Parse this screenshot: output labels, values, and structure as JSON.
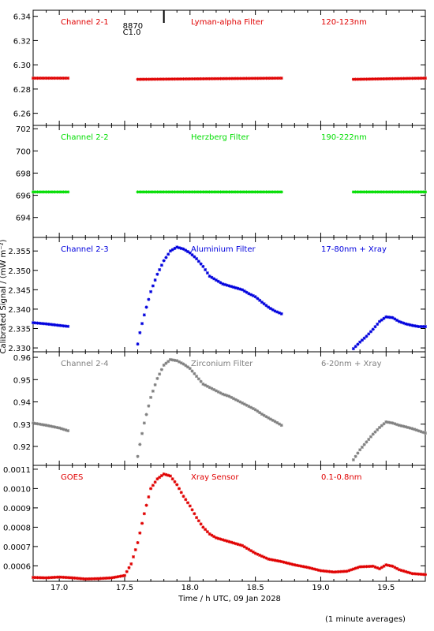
{
  "figure": {
    "ylabel": "Calibrated Signal / (mW m⁻²)",
    "xlabel": "Time / h UTC, 09 Jan 2028",
    "footnote": "(1 minute averages)",
    "flare_marker": {
      "time": 17.8,
      "top_label": "8870",
      "bottom_label": "C1.0"
    }
  },
  "chart_data": [
    {
      "type": "scatter",
      "panel": "Channel 2-1",
      "labels": [
        "Channel 2-1",
        "Lyman-alpha Filter",
        "120-123nm"
      ],
      "color": "#e00000",
      "ylim": [
        6.25,
        6.345
      ],
      "yticks": [
        6.26,
        6.28,
        6.3,
        6.32,
        6.34
      ],
      "ytick_labels": [
        "6.26",
        "6.28",
        "6.30",
        "6.32",
        "6.34"
      ],
      "segments": [
        {
          "x": [
            16.8,
            17.08
          ],
          "y": [
            6.289,
            6.289
          ]
        },
        {
          "x": [
            17.6,
            18.7
          ],
          "y": [
            6.288,
            6.289
          ]
        },
        {
          "x": [
            19.25,
            19.8
          ],
          "y": [
            6.288,
            6.289
          ]
        }
      ]
    },
    {
      "type": "scatter",
      "panel": "Channel 2-2",
      "labels": [
        "Channel 2-2",
        "Herzberg Filter",
        "190-222nm"
      ],
      "color": "#00dd00",
      "ylim": [
        692.2,
        702.3
      ],
      "yticks": [
        694,
        696,
        698,
        700,
        702
      ],
      "ytick_labels": [
        "694",
        "696",
        "698",
        "700",
        "702"
      ],
      "segments": [
        {
          "x": [
            16.8,
            17.08
          ],
          "y": [
            696.3,
            696.3
          ]
        },
        {
          "x": [
            17.6,
            18.7
          ],
          "y": [
            696.3,
            696.3
          ]
        },
        {
          "x": [
            19.25,
            19.8
          ],
          "y": [
            696.3,
            696.3
          ]
        }
      ]
    },
    {
      "type": "scatter",
      "panel": "Channel 2-3",
      "labels": [
        "Channel 2-3",
        "Aluminium Filter",
        "17-80nm + Xray"
      ],
      "color": "#0000dd",
      "ylim": [
        2.329,
        2.3585
      ],
      "yticks": [
        2.33,
        2.335,
        2.34,
        2.345,
        2.35,
        2.355
      ],
      "ytick_labels": [
        "2.330",
        "2.335",
        "2.340",
        "2.345",
        "2.350",
        "2.355"
      ],
      "segments": [
        {
          "x": [
            16.8,
            16.9,
            17.0,
            17.08
          ],
          "y": [
            2.3365,
            2.3362,
            2.3358,
            2.3355
          ]
        },
        {
          "x": [
            17.6,
            17.62,
            17.65,
            17.7,
            17.75,
            17.8,
            17.85,
            17.9,
            17.95,
            18.0,
            18.05,
            18.1,
            18.15,
            18.2,
            18.25,
            18.3,
            18.35,
            18.4,
            18.45,
            18.5,
            18.55,
            18.6,
            18.65,
            18.7
          ],
          "y": [
            2.331,
            2.3345,
            2.3385,
            2.3445,
            2.349,
            2.3525,
            2.355,
            2.356,
            2.3555,
            2.3545,
            2.353,
            2.351,
            2.3485,
            2.3475,
            2.3465,
            2.346,
            2.3455,
            2.345,
            2.344,
            2.3432,
            2.3418,
            2.3405,
            2.3395,
            2.3388
          ]
        },
        {
          "x": [
            19.25,
            19.3,
            19.35,
            19.4,
            19.45,
            19.5,
            19.55,
            19.6,
            19.65,
            19.7,
            19.75,
            19.8
          ],
          "y": [
            2.3298,
            2.3315,
            2.333,
            2.3348,
            2.3368,
            2.338,
            2.3378,
            2.3368,
            2.3362,
            2.3358,
            2.3355,
            2.3355
          ]
        }
      ]
    },
    {
      "type": "scatter",
      "panel": "Channel 2-4",
      "labels": [
        "Channel 2-4",
        "Zirconium Filter",
        "6-20nm + Xray"
      ],
      "color": "#808080",
      "ylim": [
        0.9115,
        0.9625
      ],
      "yticks": [
        0.92,
        0.93,
        0.94,
        0.95,
        0.96
      ],
      "ytick_labels": [
        "0.92",
        "0.93",
        "0.94",
        "0.95",
        "0.96"
      ],
      "segments": [
        {
          "x": [
            16.8,
            16.9,
            17.0,
            17.08
          ],
          "y": [
            0.9305,
            0.9295,
            0.9283,
            0.9268
          ]
        },
        {
          "x": [
            17.6,
            17.62,
            17.65,
            17.7,
            17.75,
            17.8,
            17.85,
            17.9,
            17.95,
            18.0,
            18.05,
            18.1,
            18.15,
            18.2,
            18.25,
            18.3,
            18.35,
            18.4,
            18.45,
            18.5,
            18.55,
            18.6,
            18.65,
            18.7
          ],
          "y": [
            0.9155,
            0.922,
            0.9305,
            0.942,
            0.9505,
            0.9565,
            0.959,
            0.9585,
            0.957,
            0.955,
            0.9515,
            0.948,
            0.9465,
            0.945,
            0.9435,
            0.9425,
            0.941,
            0.9395,
            0.938,
            0.9365,
            0.9345,
            0.9328,
            0.9312,
            0.9295
          ]
        },
        {
          "x": [
            19.25,
            19.3,
            19.35,
            19.4,
            19.45,
            19.5,
            19.55,
            19.6,
            19.65,
            19.7,
            19.75,
            19.8
          ],
          "y": [
            0.914,
            0.9185,
            0.922,
            0.9255,
            0.9285,
            0.931,
            0.9305,
            0.9295,
            0.9288,
            0.928,
            0.927,
            0.926
          ]
        }
      ]
    },
    {
      "type": "scatter",
      "panel": "GOES",
      "labels": [
        "GOES",
        "Xray Sensor",
        "0.1-0.8nm"
      ],
      "color": "#e00000",
      "ylim": [
        0.00052,
        0.00112
      ],
      "yticks": [
        0.0006,
        0.0007,
        0.0008,
        0.0009,
        0.001,
        0.0011
      ],
      "ytick_labels": [
        "0.0006",
        "0.0007",
        "0.0008",
        "0.0009",
        "0.0010",
        "0.0011"
      ],
      "segments": [
        {
          "x": [
            16.8,
            16.9,
            17.0,
            17.1,
            17.2,
            17.3,
            17.4,
            17.5,
            17.55,
            17.6,
            17.65,
            17.7,
            17.75,
            17.8,
            17.85,
            17.9,
            17.95,
            18.0,
            18.05,
            18.1,
            18.15,
            18.2,
            18.3,
            18.4,
            18.5,
            18.6,
            18.7,
            18.8,
            18.9,
            19.0,
            19.1,
            19.2,
            19.3,
            19.4,
            19.45,
            19.5,
            19.55,
            19.6,
            19.7,
            19.8
          ],
          "y": [
            0.00054,
            0.000538,
            0.000542,
            0.000538,
            0.000532,
            0.000534,
            0.000538,
            0.00055,
            0.00061,
            0.00072,
            0.00087,
            0.001,
            0.00105,
            0.001075,
            0.001065,
            0.00102,
            0.00096,
            0.00091,
            0.00085,
            0.0008,
            0.000765,
            0.000745,
            0.000725,
            0.000705,
            0.000665,
            0.000635,
            0.000622,
            0.000605,
            0.000592,
            0.000575,
            0.000568,
            0.000572,
            0.000595,
            0.000598,
            0.000585,
            0.000605,
            0.000598,
            0.00058,
            0.00056,
            0.000555
          ]
        }
      ]
    }
  ],
  "x_axis": {
    "xlim": [
      16.8,
      19.8
    ],
    "ticks": [
      17.0,
      17.5,
      18.0,
      18.5,
      19.0,
      19.5
    ],
    "tick_labels": [
      "17.0",
      "17.5",
      "18.0",
      "18.5",
      "19.0",
      "19.5"
    ]
  }
}
